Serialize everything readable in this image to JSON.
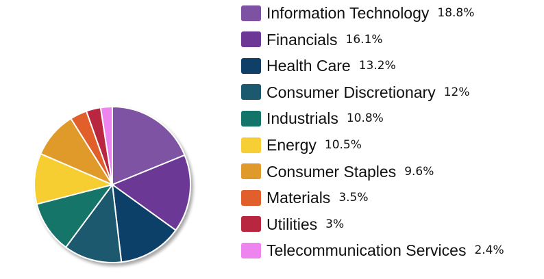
{
  "chart_data": {
    "type": "pie",
    "title": "",
    "legend_position": "right",
    "series": [
      {
        "label": "Information Technology",
        "value": 18.8,
        "display": "18.8%",
        "color": "#7e52a3"
      },
      {
        "label": "Financials",
        "value": 16.1,
        "display": "16.1%",
        "color": "#6c3795"
      },
      {
        "label": "Health Care",
        "value": 13.2,
        "display": "13.2%",
        "color": "#0f3f67"
      },
      {
        "label": "Consumer Discretionary",
        "value": 12,
        "display": "12%",
        "color": "#1c586e"
      },
      {
        "label": "Industrials",
        "value": 10.8,
        "display": "10.8%",
        "color": "#137469"
      },
      {
        "label": "Energy",
        "value": 10.5,
        "display": "10.5%",
        "color": "#f7ce33"
      },
      {
        "label": "Consumer Staples",
        "value": 9.6,
        "display": "9.6%",
        "color": "#e09a2b"
      },
      {
        "label": "Materials",
        "value": 3.5,
        "display": "3.5%",
        "color": "#e05f2a"
      },
      {
        "label": "Utilities",
        "value": 3,
        "display": "3%",
        "color": "#b8263f"
      },
      {
        "label": "Telecommunication Services",
        "value": 2.4,
        "display": "2.4%",
        "color": "#ee84ee"
      }
    ]
  }
}
